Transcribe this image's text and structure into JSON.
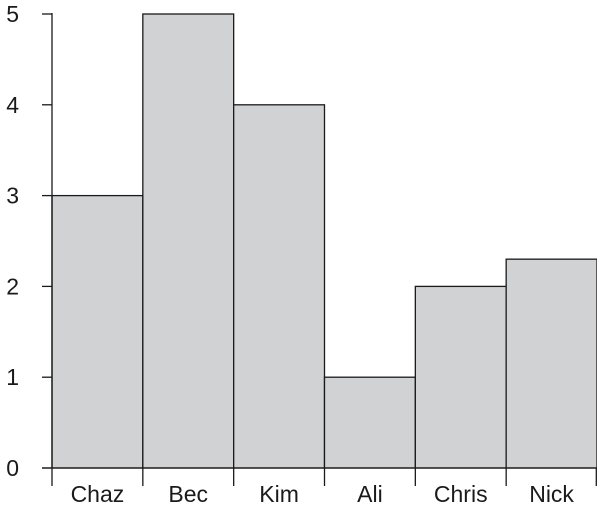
{
  "chart_data": {
    "type": "bar",
    "categories": [
      "Chaz",
      "Bec",
      "Kim",
      "Ali",
      "Chris",
      "Nick"
    ],
    "values": [
      3,
      5,
      4,
      1,
      2,
      2.3
    ],
    "ylim": [
      0,
      5
    ],
    "yticks": [
      0,
      1,
      2,
      3,
      4,
      5
    ],
    "title": "",
    "xlabel": "",
    "ylabel": "",
    "grid": false,
    "colors": {
      "bar_fill": "#d1d2d4",
      "bar_stroke": "#1a1a1a"
    }
  }
}
